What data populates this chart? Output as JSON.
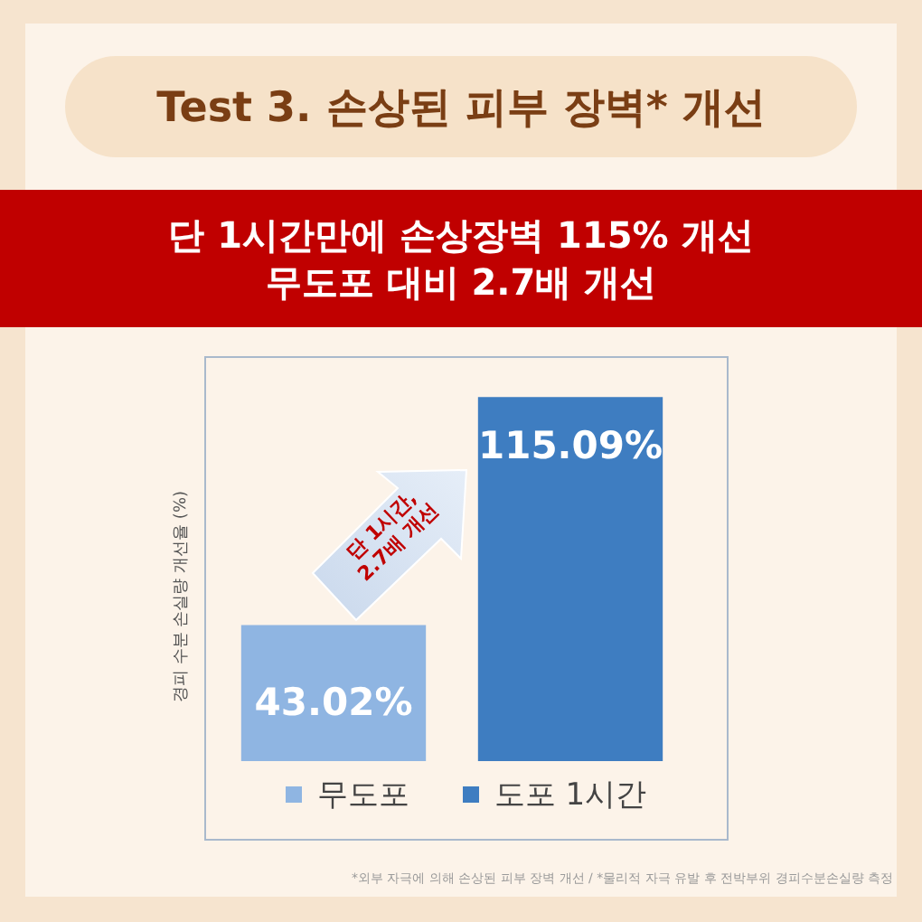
{
  "chart_data": {
    "type": "bar",
    "title": "Test 3. 손상된 피부 장벽* 개선",
    "subtitle": "단 1시간만에 손상장벽 115% 개선\n무도포 대비 2.7배 개선",
    "categories": [
      null,
      null
    ],
    "series": [
      {
        "name": "무도포",
        "color": "#8fb5e2",
        "values": [
          43.02,
          null
        ],
        "value_labels": [
          "43.02%",
          null
        ]
      },
      {
        "name": "도포 1시간",
        "color": "#3e7dc1",
        "values": [
          null,
          115.09
        ],
        "value_labels": [
          null,
          "115.09%"
        ]
      }
    ],
    "stacked": true,
    "legend": "bottom",
    "tick_labels": false,
    "annotations": [
      "단 1시간,\n2.7배 개선",
      "경피 수분 손실량 개선율 (%)",
      "*외부 자극에 의해 손상된 피부 장벽 개선 / *물리적 자극 유발 후 전박부위 경피수분손실량 측정"
    ]
  }
}
